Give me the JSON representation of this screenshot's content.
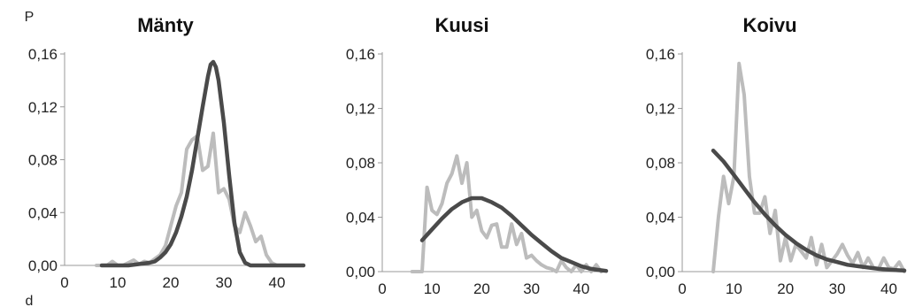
{
  "figure": {
    "y_axis_label": "P",
    "x_axis_label": "d"
  },
  "chart_data": [
    {
      "type": "line",
      "title": "Mänty",
      "xlabel": "d",
      "ylabel": "P",
      "xlim": [
        0,
        45
      ],
      "ylim": [
        0,
        0.16
      ],
      "x_ticks": [
        "0",
        "10",
        "20",
        "30",
        "40"
      ],
      "y_ticks": [
        "0,00",
        "0,04",
        "0,08",
        "0,12",
        "0,16"
      ],
      "series": [
        {
          "color": "#bcbcbc",
          "x": [
            6,
            8,
            9,
            10,
            11,
            12,
            13,
            14,
            15,
            16,
            17,
            18,
            19,
            20,
            21,
            22,
            23,
            24,
            25,
            26,
            27,
            28,
            29,
            30,
            31,
            32,
            33,
            34,
            35,
            36,
            37,
            38,
            39,
            40
          ],
          "y": [
            0,
            0,
            0.003,
            0,
            0,
            0.002,
            0.004,
            0.001,
            0.003,
            0.002,
            0.005,
            0.008,
            0.015,
            0.03,
            0.045,
            0.055,
            0.088,
            0.095,
            0.098,
            0.072,
            0.075,
            0.1,
            0.055,
            0.058,
            0.05,
            0.03,
            0.025,
            0.04,
            0.03,
            0.018,
            0.022,
            0.008,
            0.002,
            0
          ]
        },
        {
          "color": "#4a4a4a",
          "x": [
            7,
            10,
            12,
            14,
            16,
            17,
            18,
            19,
            20,
            21,
            22,
            23,
            24,
            25,
            26,
            27,
            27.5,
            28,
            28.5,
            29,
            30,
            31,
            32,
            33,
            34,
            35,
            36,
            40,
            45
          ],
          "y": [
            0,
            0,
            0,
            0.001,
            0.002,
            0.003,
            0.006,
            0.01,
            0.016,
            0.025,
            0.037,
            0.052,
            0.072,
            0.096,
            0.12,
            0.143,
            0.152,
            0.154,
            0.15,
            0.14,
            0.108,
            0.068,
            0.032,
            0.01,
            0.002,
            0,
            0,
            0,
            0
          ]
        }
      ]
    },
    {
      "type": "line",
      "title": "Kuusi",
      "xlabel": "",
      "ylabel": "",
      "xlim": [
        0,
        45
      ],
      "ylim": [
        0,
        0.16
      ],
      "x_ticks": [
        "0",
        "10",
        "20",
        "30",
        "40"
      ],
      "y_ticks": [
        "0,00",
        "0,04",
        "0,08",
        "0,12",
        "0,16"
      ],
      "series": [
        {
          "color": "#bcbcbc",
          "x": [
            6,
            8,
            9,
            10,
            11,
            12,
            13,
            14,
            15,
            16,
            17,
            18,
            19,
            20,
            21,
            22,
            23,
            24,
            25,
            26,
            27,
            28,
            29,
            30,
            31,
            32,
            33,
            34,
            35,
            36,
            37,
            38,
            39,
            40,
            41,
            42,
            43,
            44
          ],
          "y": [
            0,
            0,
            0.062,
            0.045,
            0.042,
            0.05,
            0.065,
            0.072,
            0.085,
            0.065,
            0.08,
            0.04,
            0.045,
            0.03,
            0.025,
            0.034,
            0.035,
            0.018,
            0.018,
            0.035,
            0.02,
            0.028,
            0.01,
            0.012,
            0.008,
            0.005,
            0.003,
            0.002,
            0,
            0.008,
            0.003,
            0,
            0.005,
            0,
            0.005,
            0,
            0.005,
            0
          ]
        },
        {
          "color": "#4a4a4a",
          "x": [
            8,
            10,
            12,
            14,
            16,
            18,
            20,
            22,
            24,
            26,
            28,
            30,
            32,
            34,
            36,
            38,
            40,
            42,
            44,
            45
          ],
          "y": [
            0.023,
            0.031,
            0.039,
            0.046,
            0.051,
            0.054,
            0.054,
            0.051,
            0.047,
            0.041,
            0.034,
            0.027,
            0.021,
            0.015,
            0.01,
            0.007,
            0.004,
            0.002,
            0.001,
            0.0005
          ]
        }
      ]
    },
    {
      "type": "line",
      "title": "Koivu",
      "xlabel": "",
      "ylabel": "",
      "xlim": [
        0,
        43
      ],
      "ylim": [
        0,
        0.16
      ],
      "x_ticks": [
        "0",
        "10",
        "20",
        "30",
        "40"
      ],
      "y_ticks": [
        "0,00",
        "0,04",
        "0,08",
        "0,12",
        "0,16"
      ],
      "series": [
        {
          "color": "#bcbcbc",
          "x": [
            6,
            7,
            8,
            9,
            10,
            11,
            12,
            13,
            14,
            15,
            16,
            17,
            18,
            19,
            20,
            21,
            22,
            23,
            24,
            25,
            26,
            27,
            28,
            29,
            30,
            31,
            32,
            33,
            34,
            35,
            36,
            37,
            38,
            39,
            40,
            41,
            42,
            43
          ],
          "y": [
            0,
            0.04,
            0.07,
            0.05,
            0.07,
            0.153,
            0.13,
            0.07,
            0.043,
            0.043,
            0.055,
            0.028,
            0.045,
            0.008,
            0.025,
            0.008,
            0.02,
            0.015,
            0.01,
            0.025,
            0.005,
            0.02,
            0.003,
            0.008,
            0.013,
            0.02,
            0.012,
            0.006,
            0.014,
            0.003,
            0.01,
            0.003,
            0.002,
            0.01,
            0.003,
            0.002,
            0.007,
            0
          ]
        },
        {
          "color": "#4a4a4a",
          "x": [
            6,
            8,
            10,
            12,
            14,
            16,
            18,
            20,
            22,
            24,
            26,
            28,
            30,
            32,
            34,
            36,
            38,
            40,
            42,
            43
          ],
          "y": [
            0.089,
            0.081,
            0.071,
            0.061,
            0.051,
            0.042,
            0.034,
            0.027,
            0.021,
            0.016,
            0.012,
            0.009,
            0.007,
            0.005,
            0.004,
            0.003,
            0.002,
            0.0015,
            0.001,
            0.0008
          ]
        }
      ]
    }
  ]
}
